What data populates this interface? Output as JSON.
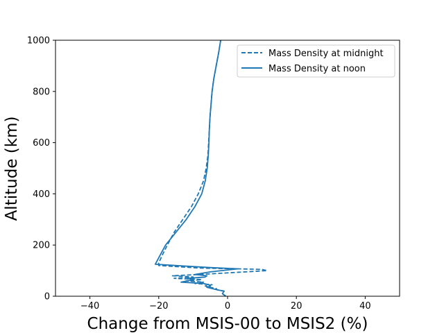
{
  "chart_data": {
    "type": "line",
    "title": "",
    "xlabel": "Change from MSIS-00 to MSIS2 (%)",
    "ylabel": "Altitude (km)",
    "xlim": [
      -50,
      50
    ],
    "ylim": [
      0,
      1000
    ],
    "xticks": [
      -40,
      -20,
      0,
      20,
      40
    ],
    "xtick_labels": [
      "−40",
      "−20",
      "0",
      "20",
      "40"
    ],
    "yticks": [
      0,
      200,
      400,
      600,
      800,
      1000
    ],
    "ytick_labels": [
      "0",
      "200",
      "400",
      "600",
      "800",
      "1000"
    ],
    "grid": false,
    "legend_position": "upper right",
    "series": [
      {
        "name": "Mass Density at midnight",
        "style": "dashed",
        "color": "#1f77b4",
        "x": [
          -0.5,
          -1.5,
          -1.0,
          -3.0,
          -3.3,
          -5.0,
          -6.5,
          -4.5,
          -9.5,
          -7.0,
          -12.0,
          -7.5,
          -15.5,
          -10.0,
          -16.0,
          -8.0,
          11.5,
          10.0,
          3.0,
          -8.0,
          -20.0,
          -20.0,
          -19.0,
          -17.5,
          -15.5,
          -13.0,
          -10.5,
          -8.5,
          -7.0,
          -6.2,
          -5.7,
          -5.5,
          -5.3,
          -5.1,
          -4.8,
          -4.5,
          -4.0,
          -3.3,
          -2.6,
          -2.0
        ],
        "y": [
          0,
          10,
          20,
          25,
          30,
          35,
          40,
          45,
          50,
          55,
          60,
          65,
          70,
          75,
          80,
          85,
          100,
          105,
          107,
          110,
          120,
          130,
          160,
          200,
          250,
          300,
          350,
          400,
          450,
          500,
          550,
          600,
          650,
          700,
          750,
          800,
          850,
          900,
          950,
          1000
        ]
      },
      {
        "name": "Mass Density at noon",
        "style": "solid",
        "color": "#1f77b4",
        "x": [
          -0.5,
          -1.5,
          -1.0,
          -3.0,
          -6.0,
          -5.0,
          -5.5,
          -7.0,
          -13.5,
          -10.0,
          -11.5,
          -6.5,
          -6.0,
          -9.5,
          -5.0,
          3.0,
          -5.0,
          -21.0,
          -20.0,
          -18.0,
          -15.0,
          -12.0,
          -9.5,
          -7.5,
          -6.5,
          -5.9,
          -5.6,
          -5.4,
          -5.3,
          -5.1,
          -4.8,
          -4.5,
          -4.0,
          -3.3,
          -2.6,
          -2.0
        ],
        "y": [
          0,
          10,
          20,
          25,
          35,
          40,
          45,
          50,
          55,
          65,
          70,
          75,
          80,
          85,
          95,
          107,
          112,
          125,
          150,
          200,
          250,
          300,
          350,
          400,
          450,
          500,
          550,
          600,
          650,
          700,
          750,
          800,
          850,
          900,
          950,
          1000
        ]
      }
    ]
  }
}
